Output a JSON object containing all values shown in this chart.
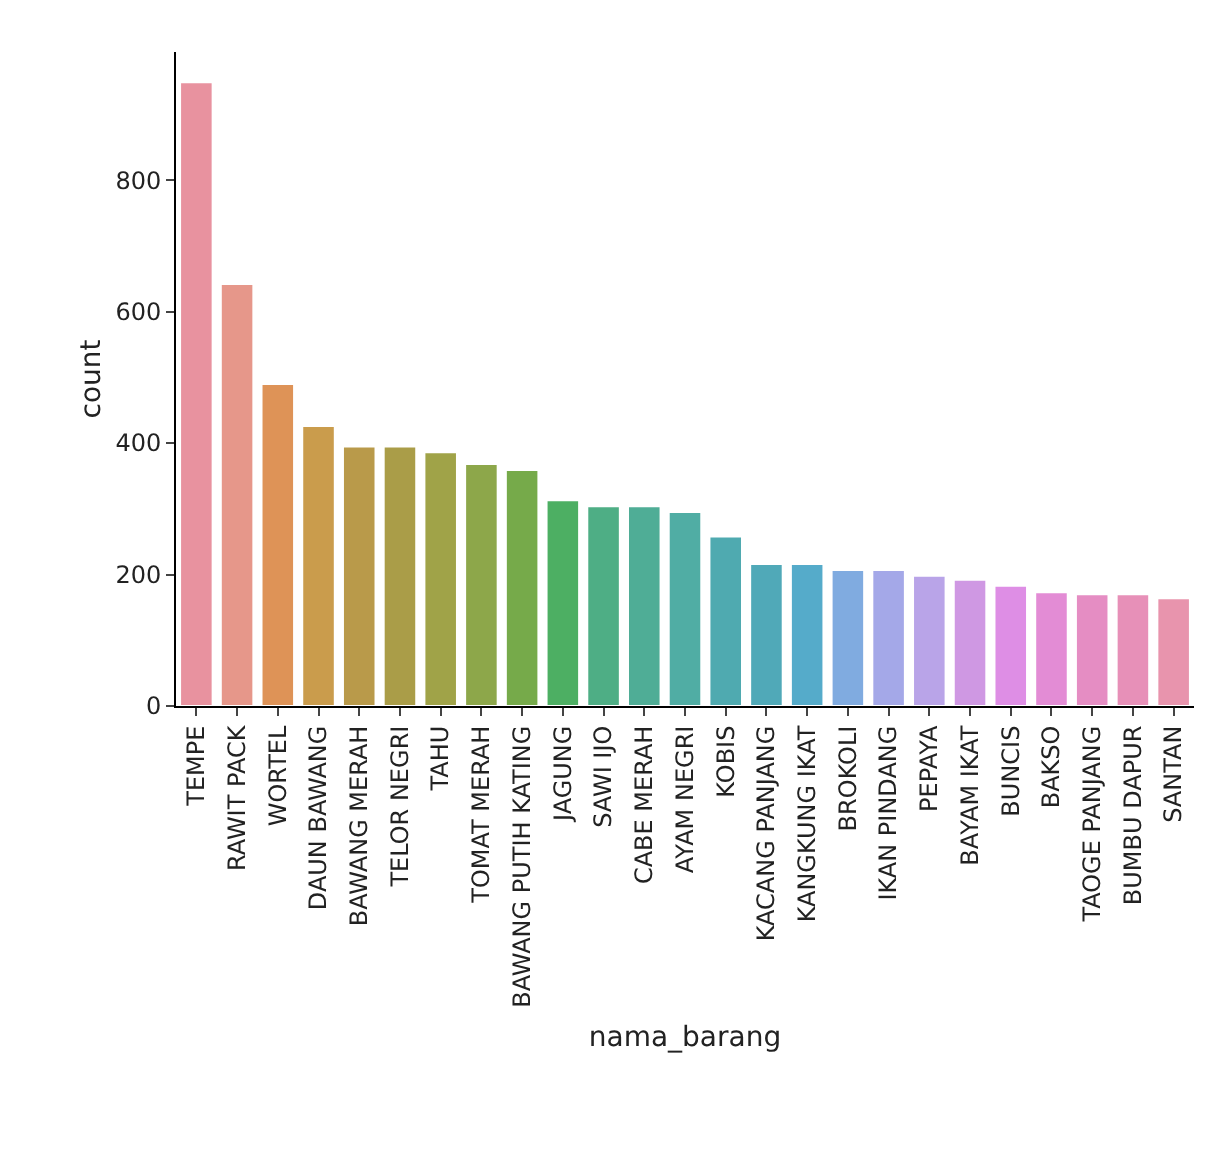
{
  "chart_data": {
    "type": "bar",
    "xlabel": "nama_barang",
    "ylabel": "count",
    "categories": [
      "TEMPE",
      "RAWIT PACK",
      "WORTEL",
      "DAUN BAWANG",
      "BAWANG MERAH",
      "TELOR NEGRI",
      "TAHU",
      "TOMAT MERAH",
      "BAWANG PUTIH KATING",
      "JAGUNG",
      "SAWI IJO",
      "CABE MERAH",
      "AYAM NEGRI",
      "KOBIS",
      "KACANG PANJANG",
      "KANGKUNG IKAT",
      "BROKOLI",
      "IKAN PINDANG",
      "PEPAYA",
      "BAYAM IKAT",
      "BUNCIS",
      "BAKSO",
      "TAOGE PANJANG",
      "BUMBU DAPUR",
      "SANTAN"
    ],
    "values": [
      949,
      642,
      490,
      426,
      395,
      395,
      386,
      368,
      359,
      313,
      304,
      304,
      295,
      258,
      216,
      216,
      207,
      207,
      198,
      192,
      183,
      173,
      170,
      170,
      164
    ],
    "colors": [
      "#e8929f",
      "#e6978a",
      "#de9357",
      "#ca9c4c",
      "#b99a4a",
      "#aa9d48",
      "#a0a348",
      "#8da74a",
      "#76aa4a",
      "#4daf63",
      "#4eae85",
      "#4fad96",
      "#50ada4",
      "#4faab0",
      "#50a9b8",
      "#55abca",
      "#80abe0",
      "#a4a8e8",
      "#b9a4e8",
      "#cf98e3",
      "#de8ee5",
      "#e38cd5",
      "#e58dc3",
      "#e790b8",
      "#e894ad"
    ],
    "ylim": [
      0,
      995
    ],
    "yticks": [
      0,
      200,
      400,
      600,
      800
    ],
    "grid": false,
    "legend": false
  }
}
